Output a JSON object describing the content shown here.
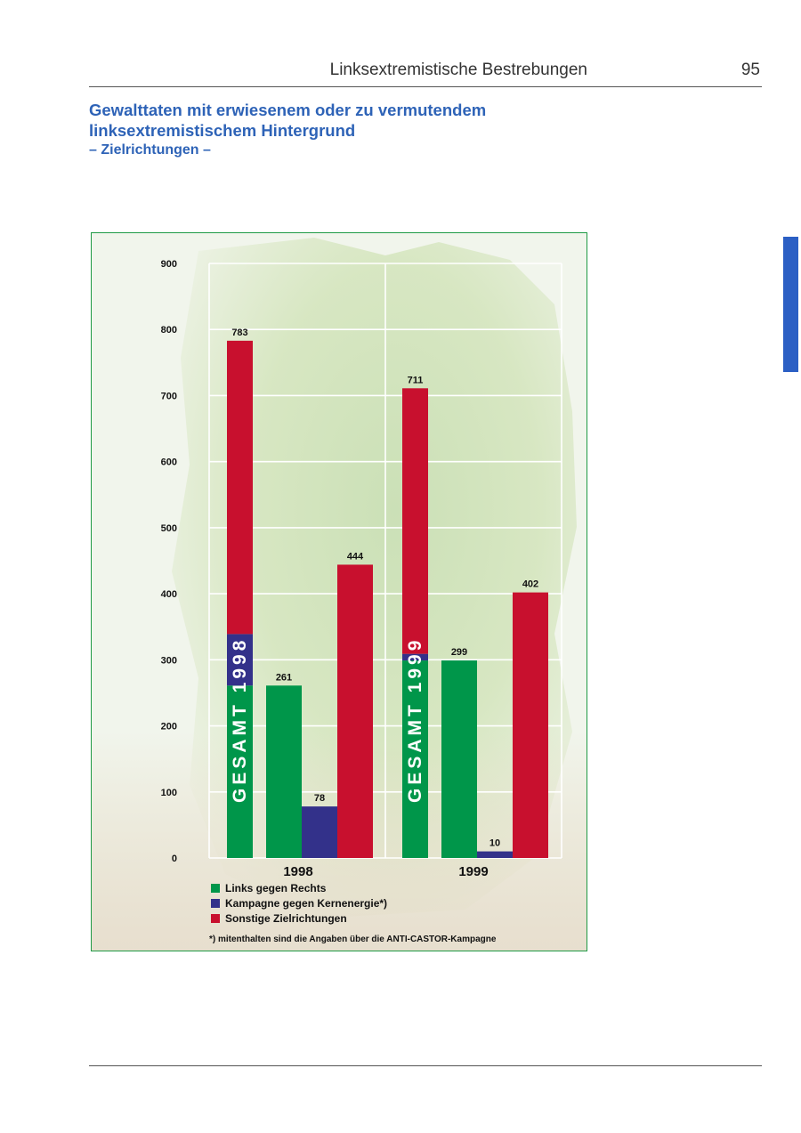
{
  "header": {
    "section_title": "Linksextremistische Bestrebungen",
    "page_number": "95"
  },
  "title": {
    "line1": "Gewalttaten mit erwiesenem oder zu vermutendem",
    "line2": "linksextremistischem Hintergrund",
    "subtitle": "– Zielrichtungen –"
  },
  "colors": {
    "accent_blue": "#2e63b7",
    "green": "#00964a",
    "purple": "#33318a",
    "red": "#c8102e",
    "frame_green": "#1f9a45"
  },
  "chart_data": {
    "type": "bar",
    "categories": [
      "1998",
      "1999"
    ],
    "ylim": [
      0,
      900
    ],
    "yticks": [
      0,
      100,
      200,
      300,
      400,
      500,
      600,
      700,
      800,
      900
    ],
    "grid": true,
    "legend_position": "bottom-left",
    "totals": [
      {
        "year": "1998",
        "value": 783,
        "label": "GESAMT 1998"
      },
      {
        "year": "1999",
        "value": 711,
        "label": "GESAMT 1999"
      }
    ],
    "series": [
      {
        "name": "Links gegen Rechts",
        "color": "#00964a",
        "values": [
          261,
          299
        ]
      },
      {
        "name": "Kampagne gegen Kernenergie*)",
        "color": "#33318a",
        "values": [
          78,
          10
        ]
      },
      {
        "name": "Sonstige Zielrichtungen",
        "color": "#c8102e",
        "values": [
          444,
          402
        ]
      }
    ],
    "footnote": "*) mitenthalten sind die Angaben über die ANTI-CASTOR-Kampagne"
  }
}
